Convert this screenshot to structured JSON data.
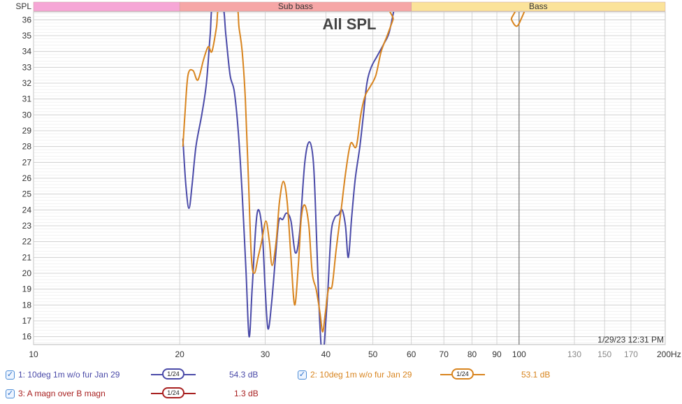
{
  "chart_data": {
    "type": "line",
    "title": "All SPL",
    "ylabel": "SPL",
    "xunit": "Hz",
    "xscale": "log",
    "xlim": [
      10,
      200
    ],
    "ylim": [
      15.5,
      36.5
    ],
    "yticks": [
      16,
      17,
      18,
      19,
      20,
      21,
      22,
      23,
      24,
      25,
      26,
      27,
      28,
      29,
      30,
      31,
      32,
      33,
      34,
      35,
      36
    ],
    "xticks": [
      {
        "v": 10,
        "label": "10",
        "major": true
      },
      {
        "v": 20,
        "label": "20",
        "major": true
      },
      {
        "v": 30,
        "label": "30",
        "major": true
      },
      {
        "v": 40,
        "label": "40",
        "major": true
      },
      {
        "v": 50,
        "label": "50",
        "major": true
      },
      {
        "v": 60,
        "label": "60",
        "major": true
      },
      {
        "v": 70,
        "label": "70",
        "major": true
      },
      {
        "v": 80,
        "label": "80",
        "major": true
      },
      {
        "v": 90,
        "label": "90",
        "major": true
      },
      {
        "v": 100,
        "label": "100",
        "major": true
      },
      {
        "v": 130,
        "label": "130",
        "major": false
      },
      {
        "v": 150,
        "label": "150",
        "major": false
      },
      {
        "v": 170,
        "label": "170",
        "major": false
      },
      {
        "v": 200,
        "label": "200Hz",
        "major": true
      }
    ],
    "bands": [
      {
        "label": "",
        "from": 10,
        "to": 20,
        "color": "#f6a6d6"
      },
      {
        "label": "Sub bass",
        "from": 20,
        "to": 60,
        "color": "#f6a6a6"
      },
      {
        "label": "Bass",
        "from": 60,
        "to": 200,
        "color": "#fbe39a"
      }
    ],
    "timestamp": "1/29/23 12:31 PM",
    "series": [
      {
        "name": "1: 10deg 1m w/o fur Jan 29",
        "color": "#4a4aa8",
        "points": [
          [
            20.3,
            28.5
          ],
          [
            20.6,
            25.5
          ],
          [
            20.9,
            24.1
          ],
          [
            21.2,
            25.5
          ],
          [
            21.6,
            28.0
          ],
          [
            22.2,
            30.0
          ],
          [
            22.7,
            32.0
          ],
          [
            23.1,
            35.0
          ],
          [
            23.4,
            37.0
          ],
          [
            24.5,
            37.0
          ],
          [
            24.9,
            35.0
          ],
          [
            25.4,
            32.5
          ],
          [
            25.9,
            31.5
          ],
          [
            26.4,
            29.0
          ],
          [
            26.9,
            25.0
          ],
          [
            27.4,
            20.0
          ],
          [
            27.8,
            16.0
          ],
          [
            28.2,
            19.0
          ],
          [
            28.7,
            23.0
          ],
          [
            29.1,
            24.0
          ],
          [
            29.6,
            22.5
          ],
          [
            30.0,
            19.0
          ],
          [
            30.4,
            16.5
          ],
          [
            30.9,
            18.0
          ],
          [
            31.5,
            21.0
          ],
          [
            32.0,
            23.3
          ],
          [
            32.6,
            23.4
          ],
          [
            33.2,
            23.8
          ],
          [
            33.9,
            23.3
          ],
          [
            34.6,
            21.3
          ],
          [
            35.3,
            22.5
          ],
          [
            36.2,
            27.0
          ],
          [
            37.0,
            28.3
          ],
          [
            37.7,
            27.0
          ],
          [
            38.2,
            23.0
          ],
          [
            38.6,
            19.0
          ],
          [
            39.0,
            16.0
          ],
          [
            39.4,
            14.5
          ],
          [
            39.8,
            16.0
          ],
          [
            40.4,
            19.0
          ],
          [
            41.0,
            22.5
          ],
          [
            41.7,
            23.5
          ],
          [
            42.5,
            23.7
          ],
          [
            43.2,
            24.0
          ],
          [
            43.9,
            23.0
          ],
          [
            44.5,
            21.0
          ],
          [
            45.2,
            23.5
          ],
          [
            46.0,
            26.0
          ],
          [
            47.0,
            28.0
          ],
          [
            47.8,
            30.0
          ],
          [
            48.6,
            32.0
          ],
          [
            49.6,
            33.0
          ],
          [
            51.0,
            33.7
          ],
          [
            52.7,
            34.5
          ],
          [
            54.0,
            35.2
          ],
          [
            55.4,
            36.8
          ]
        ]
      },
      {
        "name": "2: 10deg 1m w/o fur Jan 29",
        "color": "#d8841e",
        "points": [
          [
            20.3,
            28.0
          ],
          [
            20.5,
            30.0
          ],
          [
            20.8,
            32.5
          ],
          [
            21.3,
            32.8
          ],
          [
            21.8,
            32.2
          ],
          [
            22.4,
            33.5
          ],
          [
            22.9,
            34.3
          ],
          [
            23.3,
            34.0
          ],
          [
            23.8,
            35.5
          ],
          [
            24.2,
            37.0
          ],
          [
            26.1,
            37.0
          ],
          [
            26.5,
            35.5
          ],
          [
            26.9,
            34.0
          ],
          [
            27.3,
            31.0
          ],
          [
            27.7,
            26.0
          ],
          [
            28.1,
            21.0
          ],
          [
            28.5,
            20.0
          ],
          [
            29.0,
            21.0
          ],
          [
            29.5,
            22.0
          ],
          [
            30.1,
            23.3
          ],
          [
            30.6,
            22.0
          ],
          [
            31.0,
            20.5
          ],
          [
            31.6,
            22.0
          ],
          [
            32.1,
            24.5
          ],
          [
            32.7,
            25.8
          ],
          [
            33.3,
            24.5
          ],
          [
            33.9,
            21.0
          ],
          [
            34.5,
            18.0
          ],
          [
            35.1,
            20.5
          ],
          [
            35.6,
            23.5
          ],
          [
            36.2,
            24.3
          ],
          [
            36.9,
            23.0
          ],
          [
            37.5,
            20.0
          ],
          [
            38.2,
            19.0
          ],
          [
            38.9,
            17.5
          ],
          [
            39.4,
            16.3
          ],
          [
            39.9,
            17.5
          ],
          [
            40.5,
            19.0
          ],
          [
            41.2,
            19.2
          ],
          [
            42.0,
            21.5
          ],
          [
            43.0,
            24.0
          ],
          [
            44.0,
            26.5
          ],
          [
            45.0,
            28.2
          ],
          [
            46.2,
            28.0
          ],
          [
            47.2,
            30.0
          ],
          [
            48.2,
            31.2
          ],
          [
            49.4,
            31.8
          ],
          [
            50.7,
            32.5
          ],
          [
            52.0,
            34.0
          ],
          [
            53.5,
            35.0
          ],
          [
            55.0,
            36.0
          ],
          [
            56.5,
            37.0
          ],
          [
            94.0,
            37.0
          ],
          [
            96.5,
            36.0
          ],
          [
            99.0,
            35.6
          ],
          [
            101.5,
            36.2
          ],
          [
            104.0,
            37.0
          ]
        ]
      }
    ]
  },
  "legend": {
    "items": [
      {
        "label": "1: 10deg 1m w/o fur Jan 29",
        "smoothing": "1/24",
        "level": "54.3 dB",
        "color": "#4a4aa8"
      },
      {
        "label": "2: 10deg 1m w/o fur Jan 29",
        "smoothing": "1/24",
        "level": "53.1 dB",
        "color": "#d8841e"
      },
      {
        "label": "3: A magn over B magn",
        "smoothing": "1/24",
        "level": "1.3 dB",
        "color": "#a82020"
      }
    ]
  }
}
